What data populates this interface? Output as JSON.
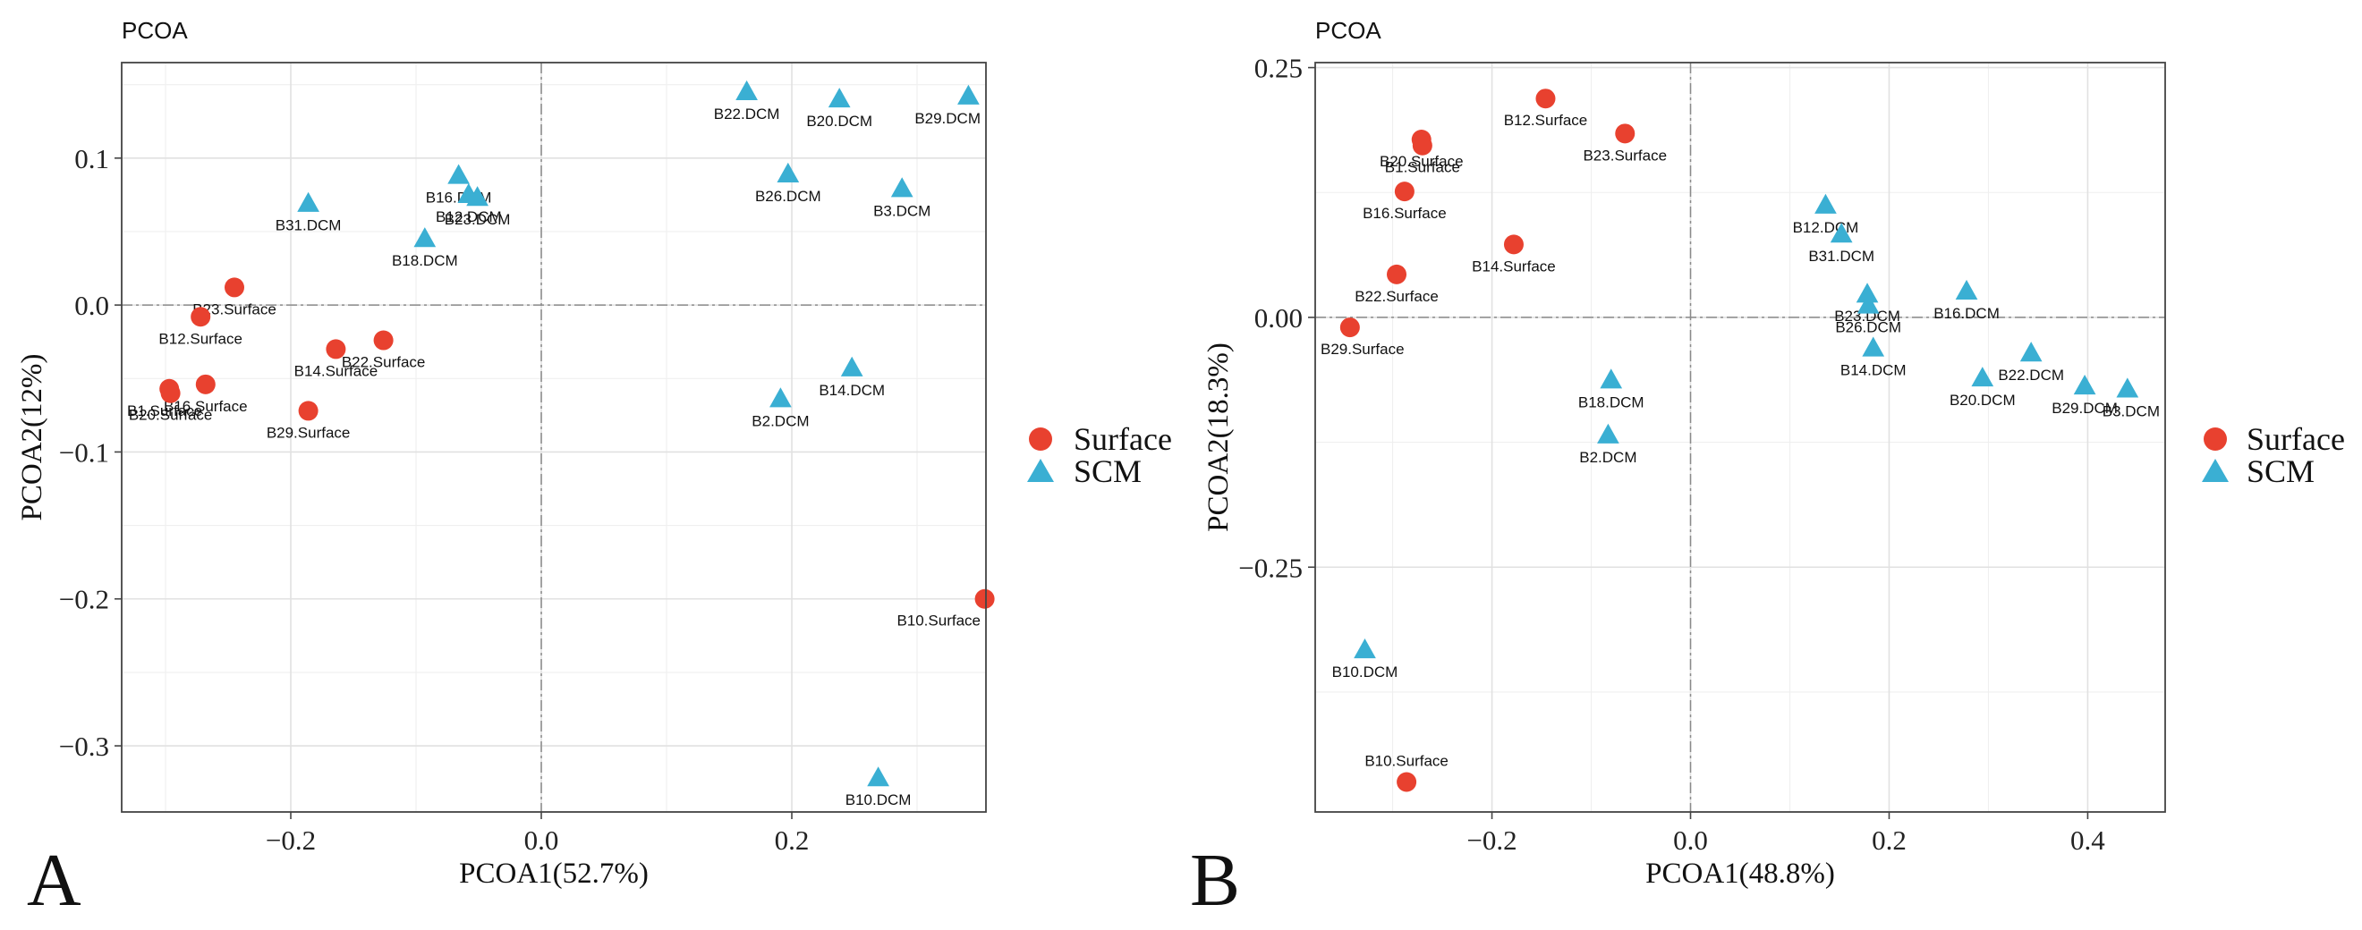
{
  "colors": {
    "surface": "#e8412f",
    "scm": "#3aafd3"
  },
  "legend": {
    "items": [
      {
        "label": "Surface",
        "shape": "circle",
        "color": "#e8412f"
      },
      {
        "label": "SCM",
        "shape": "triangle",
        "color": "#3aafd3"
      }
    ]
  },
  "chart_data": [
    {
      "type": "scatter",
      "panel": "A",
      "title": "PCOA",
      "xlabel": "PCOA1(52.7%)",
      "ylabel": "PCOA2(12%)",
      "xlim": [
        -0.335,
        0.355
      ],
      "ylim": [
        -0.345,
        0.165
      ],
      "xticks": [
        -0.2,
        0,
        0.2
      ],
      "xtick_labels": [
        "−0.2",
        "0.0",
        "0.2"
      ],
      "yticks": [
        -0.3,
        -0.2,
        -0.1,
        0,
        0.1
      ],
      "ytick_labels": [
        "−0.3",
        "−0.2",
        "−0.1",
        "0.0",
        "0.1"
      ],
      "series": [
        {
          "name": "Surface",
          "marker": "circle",
          "points": [
            {
              "label": "B23.Surface",
              "x": -0.245,
              "y": 0.012
            },
            {
              "label": "B12.Surface",
              "x": -0.272,
              "y": -0.008
            },
            {
              "label": "B16.Surface",
              "x": -0.268,
              "y": -0.054
            },
            {
              "label": "B1.Surface",
              "x": -0.297,
              "y": -0.057
            },
            {
              "label": "B20.Surface",
              "x": -0.296,
              "y": -0.06
            },
            {
              "label": "B22.Surface",
              "x": -0.126,
              "y": -0.024
            },
            {
              "label": "B14.Surface",
              "x": -0.164,
              "y": -0.03
            },
            {
              "label": "B29.Surface",
              "x": -0.186,
              "y": -0.072
            },
            {
              "label": "B10.Surface",
              "x": 0.354,
              "y": -0.2
            }
          ]
        },
        {
          "name": "SCM",
          "marker": "triangle",
          "points": [
            {
              "label": "B22.DCM",
              "x": 0.164,
              "y": 0.145
            },
            {
              "label": "B20.DCM",
              "x": 0.238,
              "y": 0.14
            },
            {
              "label": "B29.DCM",
              "x": 0.341,
              "y": 0.142
            },
            {
              "label": "B26.DCM",
              "x": 0.197,
              "y": 0.089
            },
            {
              "label": "B3.DCM",
              "x": 0.288,
              "y": 0.079
            },
            {
              "label": "B16.DCM",
              "x": -0.066,
              "y": 0.088
            },
            {
              "label": "B12.DCM",
              "x": -0.058,
              "y": 0.075
            },
            {
              "label": "B23.DCM",
              "x": -0.051,
              "y": 0.073
            },
            {
              "label": "B31.DCM",
              "x": -0.186,
              "y": 0.069
            },
            {
              "label": "B18.DCM",
              "x": -0.093,
              "y": 0.045
            },
            {
              "label": "B14.DCM",
              "x": 0.248,
              "y": -0.043
            },
            {
              "label": "B2.DCM",
              "x": 0.191,
              "y": -0.064
            },
            {
              "label": "B10.DCM",
              "x": 0.269,
              "y": -0.322
            }
          ]
        }
      ]
    },
    {
      "type": "scatter",
      "panel": "B",
      "title": "PCOA",
      "xlabel": "PCOA1(48.8%)",
      "ylabel": "PCOA2(18.3%)",
      "xlim": [
        -0.378,
        0.478
      ],
      "ylim": [
        -0.495,
        0.255
      ],
      "xticks": [
        -0.2,
        0,
        0.2,
        0.4
      ],
      "xtick_labels": [
        "−0.2",
        "0.0",
        "0.2",
        "0.4"
      ],
      "yticks": [
        -0.25,
        0,
        0.25
      ],
      "ytick_labels": [
        "−0.25",
        "0.00",
        "0.25"
      ],
      "series": [
        {
          "name": "Surface",
          "marker": "circle",
          "points": [
            {
              "label": "B12.Surface",
              "x": -0.146,
              "y": 0.219
            },
            {
              "label": "B20.Surface",
              "x": -0.271,
              "y": 0.178
            },
            {
              "label": "B1.Surface",
              "x": -0.27,
              "y": 0.172
            },
            {
              "label": "B23.Surface",
              "x": -0.066,
              "y": 0.184
            },
            {
              "label": "B16.Surface",
              "x": -0.288,
              "y": 0.126
            },
            {
              "label": "B14.Surface",
              "x": -0.178,
              "y": 0.073
            },
            {
              "label": "B22.Surface",
              "x": -0.296,
              "y": 0.043
            },
            {
              "label": "B29.Surface",
              "x": -0.343,
              "y": -0.01
            },
            {
              "label": "B10.Surface",
              "x": -0.286,
              "y": -0.465
            }
          ]
        },
        {
          "name": "SCM",
          "marker": "triangle",
          "points": [
            {
              "label": "B12.DCM",
              "x": 0.136,
              "y": 0.112
            },
            {
              "label": "B31.DCM",
              "x": 0.152,
              "y": 0.083
            },
            {
              "label": "B23.DCM",
              "x": 0.178,
              "y": 0.023
            },
            {
              "label": "B26.DCM",
              "x": 0.179,
              "y": 0.012
            },
            {
              "label": "B16.DCM",
              "x": 0.278,
              "y": 0.026
            },
            {
              "label": "B14.DCM",
              "x": 0.184,
              "y": -0.031
            },
            {
              "label": "B22.DCM",
              "x": 0.343,
              "y": -0.036
            },
            {
              "label": "B20.DCM",
              "x": 0.294,
              "y": -0.061
            },
            {
              "label": "B29.DCM",
              "x": 0.397,
              "y": -0.069
            },
            {
              "label": "B3.DCM",
              "x": 0.44,
              "y": -0.072
            },
            {
              "label": "B18.DCM",
              "x": -0.08,
              "y": -0.063
            },
            {
              "label": "B2.DCM",
              "x": -0.083,
              "y": -0.118
            },
            {
              "label": "B10.DCM",
              "x": -0.328,
              "y": -0.333
            }
          ]
        }
      ]
    }
  ]
}
